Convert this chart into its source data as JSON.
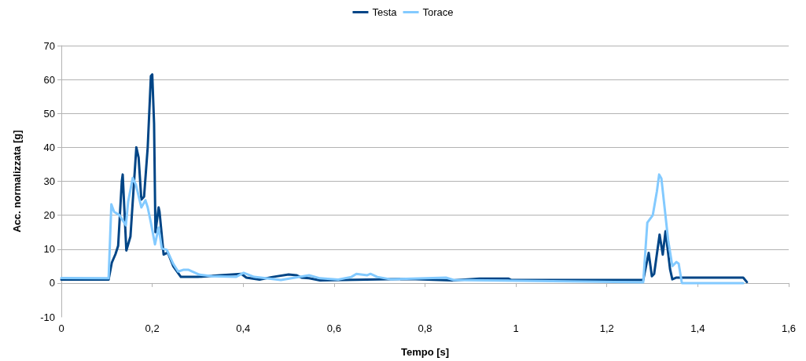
{
  "chart_data": {
    "type": "line",
    "xlabel": "Tempo [s]",
    "ylabel": "Acc. normalizzata [g]",
    "legend": "top",
    "grid": "y",
    "marker": "none",
    "line_style": "solid",
    "xlim": [
      0,
      1.6
    ],
    "xticks": [
      {
        "value": 0,
        "label": "0"
      },
      {
        "value": 0.2,
        "label": "0,2"
      },
      {
        "value": 0.4,
        "label": "0,4"
      },
      {
        "value": 0.6,
        "label": "0,6"
      },
      {
        "value": 0.8,
        "label": "0,8"
      },
      {
        "value": 1,
        "label": "1"
      },
      {
        "value": 1.2,
        "label": "1,2"
      },
      {
        "value": 1.4,
        "label": "1,4"
      },
      {
        "value": 1.6,
        "label": "1,6"
      }
    ],
    "ylim": [
      -10,
      70
    ],
    "yticks": [
      -10,
      0,
      10,
      20,
      30,
      40,
      50,
      60,
      70
    ],
    "series": [
      {
        "name": "Testa",
        "color": "#004586",
        "x": [
          0,
          0.104,
          0.111,
          0.119,
          0.125,
          0.133,
          0.135,
          0.143,
          0.152,
          0.165,
          0.17,
          0.176,
          0.182,
          0.19,
          0.197,
          0.2,
          0.204,
          0.207,
          0.214,
          0.216,
          0.225,
          0.234,
          0.246,
          0.263,
          0.3,
          0.349,
          0.396,
          0.407,
          0.436,
          0.465,
          0.5,
          0.517,
          0.528,
          0.545,
          0.569,
          0.765,
          0.86,
          0.92,
          0.984,
          0.99,
          1.28,
          1.292,
          1.299,
          1.304,
          1.316,
          1.323,
          1.329,
          1.339,
          1.344,
          1.353,
          1.5,
          1.508
        ],
        "values": [
          1,
          1,
          6,
          8.5,
          11,
          30,
          32,
          9.6,
          13.7,
          40,
          37,
          24.6,
          25.5,
          40,
          61,
          61.5,
          47,
          15,
          22.3,
          21,
          8.4,
          9,
          5,
          1.8,
          1.8,
          2.3,
          2.7,
          1.6,
          1,
          1.8,
          2.5,
          2.3,
          1.6,
          1.4,
          0.8,
          1.2,
          0.8,
          1.3,
          1.3,
          0.9,
          0.9,
          8.9,
          2,
          2.7,
          14.3,
          8.4,
          15.3,
          4.1,
          1.1,
          1.6,
          1.6,
          0.3
        ]
      },
      {
        "name": "Torace",
        "color": "#83caff",
        "x": [
          0,
          0.104,
          0.11,
          0.116,
          0.128,
          0.142,
          0.147,
          0.157,
          0.164,
          0.176,
          0.185,
          0.19,
          0.197,
          0.206,
          0.214,
          0.221,
          0.232,
          0.246,
          0.257,
          0.268,
          0.28,
          0.303,
          0.332,
          0.384,
          0.401,
          0.424,
          0.483,
          0.545,
          0.569,
          0.609,
          0.638,
          0.649,
          0.673,
          0.68,
          0.695,
          0.724,
          0.846,
          0.863,
          1.28,
          1.289,
          1.301,
          1.31,
          1.315,
          1.32,
          1.335,
          1.344,
          1.353,
          1.358,
          1.365,
          1.5
        ],
        "values": [
          1.5,
          1.4,
          23.2,
          21,
          20,
          17,
          24,
          31,
          29,
          22.3,
          24.4,
          22.3,
          17.8,
          11.4,
          16.4,
          10.2,
          9.8,
          5.7,
          3.4,
          3.9,
          3.9,
          2.5,
          2,
          1.8,
          3,
          1.8,
          0.9,
          2.3,
          1.4,
          1,
          1.8,
          2.7,
          2.3,
          2.7,
          1.8,
          1.1,
          1.6,
          0.9,
          0.2,
          17.8,
          20,
          27,
          32,
          30.8,
          12.5,
          5,
          6.2,
          5.7,
          0,
          0
        ]
      }
    ]
  }
}
